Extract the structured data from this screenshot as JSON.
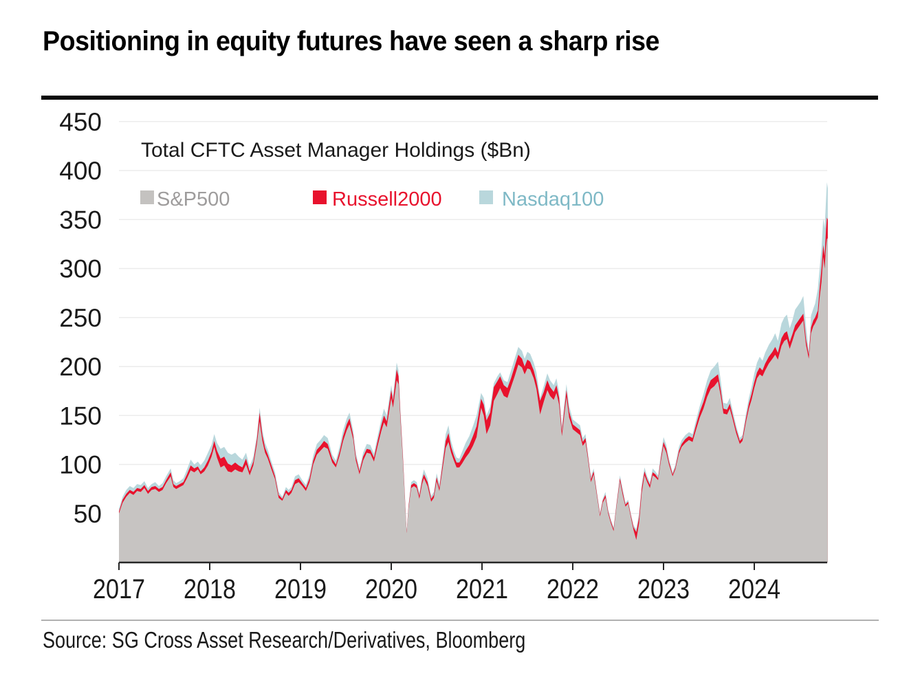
{
  "title": "Positioning in equity futures have seen a sharp rise",
  "source": "Source: SG Cross Asset Research/Derivatives, Bloomberg",
  "legend": {
    "heading": "Total CFTC Asset Manager Holdings ($Bn)",
    "items": [
      {
        "label": "S&P500",
        "swatch": "#c4c2c0",
        "text_color": "#9e9c9c",
        "x_swatch": 204,
        "x_label": 228
      },
      {
        "label": "Russell2000",
        "swatch": "#e8122d",
        "text_color": "#e8122d",
        "x_swatch": 455,
        "x_label": 483
      },
      {
        "label": "Nasdaq100",
        "swatch": "#b9d7dc",
        "text_color": "#7fb9c6",
        "x_swatch": 697,
        "x_label": 730
      }
    ]
  },
  "colors": {
    "sp500_fill": "#c7c4c2",
    "russell_fill": "#e8122d",
    "nasdaq_fill": "#b9d7dc",
    "grid": "#ececec",
    "axis": "#262626",
    "tick_label": "#1a1a1a"
  },
  "chart_data": {
    "type": "area",
    "stacked": true,
    "title": "Total CFTC Asset Manager Holdings ($Bn)",
    "series_names": [
      "S&P500",
      "Russell2000",
      "Nasdaq100"
    ],
    "units": "$Bn",
    "xlim": [
      2017.0,
      2024.81
    ],
    "ylim": [
      0,
      450
    ],
    "y_ticks": [
      50,
      100,
      150,
      200,
      250,
      300,
      350,
      400,
      450
    ],
    "x_ticks": [
      "2017",
      "2018",
      "2019",
      "2020",
      "2021",
      "2022",
      "2023",
      "2024"
    ],
    "grid": true,
    "legend_position": "top-left",
    "columns": [
      "year_fraction",
      "sp500",
      "russell2000_increment",
      "nasdaq100_increment"
    ],
    "note": "stacked area; russell and nasdaq values are increments above sp500",
    "points": [
      [
        2017.0,
        50,
        2,
        3
      ],
      [
        2017.04,
        61,
        3,
        3
      ],
      [
        2017.08,
        67,
        3,
        4
      ],
      [
        2017.12,
        71,
        3,
        4
      ],
      [
        2017.16,
        69,
        3,
        4
      ],
      [
        2017.2,
        73,
        3,
        4
      ],
      [
        2017.24,
        72,
        3,
        4
      ],
      [
        2017.28,
        76,
        3,
        4
      ],
      [
        2017.32,
        70,
        3,
        3
      ],
      [
        2017.36,
        74,
        3,
        3
      ],
      [
        2017.4,
        75,
        3,
        4
      ],
      [
        2017.44,
        72,
        3,
        3
      ],
      [
        2017.48,
        74,
        3,
        4
      ],
      [
        2017.52,
        81,
        3,
        4
      ],
      [
        2017.57,
        88,
        4,
        4
      ],
      [
        2017.6,
        77,
        3,
        4
      ],
      [
        2017.63,
        75,
        3,
        3
      ],
      [
        2017.67,
        77,
        3,
        3
      ],
      [
        2017.71,
        79,
        3,
        4
      ],
      [
        2017.75,
        86,
        4,
        5
      ],
      [
        2017.79,
        94,
        5,
        6
      ],
      [
        2017.83,
        92,
        4,
        4
      ],
      [
        2017.87,
        95,
        3,
        5
      ],
      [
        2017.9,
        90,
        3,
        6
      ],
      [
        2017.94,
        93,
        4,
        7
      ],
      [
        2017.98,
        99,
        5,
        8
      ],
      [
        2018.02,
        108,
        5,
        7
      ],
      [
        2018.05,
        118,
        6,
        7
      ],
      [
        2018.08,
        107,
        7,
        8
      ],
      [
        2018.12,
        97,
        9,
        10
      ],
      [
        2018.16,
        99,
        9,
        10
      ],
      [
        2018.2,
        93,
        8,
        11
      ],
      [
        2018.24,
        92,
        7,
        11
      ],
      [
        2018.28,
        95,
        7,
        10
      ],
      [
        2018.32,
        93,
        6,
        9
      ],
      [
        2018.36,
        92,
        5,
        8
      ],
      [
        2018.4,
        100,
        6,
        6
      ],
      [
        2018.44,
        89,
        4,
        5
      ],
      [
        2018.48,
        99,
        4,
        5
      ],
      [
        2018.52,
        121,
        5,
        4
      ],
      [
        2018.55,
        144,
        9,
        5
      ],
      [
        2018.58,
        124,
        6,
        5
      ],
      [
        2018.61,
        112,
        5,
        5
      ],
      [
        2018.64,
        106,
        4,
        5
      ],
      [
        2018.68,
        95,
        4,
        4
      ],
      [
        2018.72,
        85,
        3,
        4
      ],
      [
        2018.76,
        66,
        3,
        3
      ],
      [
        2018.8,
        63,
        2,
        2
      ],
      [
        2018.84,
        71,
        3,
        3
      ],
      [
        2018.87,
        68,
        3,
        3
      ],
      [
        2018.9,
        71,
        3,
        3
      ],
      [
        2018.94,
        80,
        4,
        4
      ],
      [
        2018.98,
        82,
        4,
        4
      ],
      [
        2019.02,
        78,
        3,
        3
      ],
      [
        2019.06,
        73,
        3,
        3
      ],
      [
        2019.1,
        82,
        4,
        4
      ],
      [
        2019.14,
        100,
        4,
        5
      ],
      [
        2019.18,
        110,
        5,
        6
      ],
      [
        2019.22,
        114,
        5,
        6
      ],
      [
        2019.26,
        118,
        6,
        6
      ],
      [
        2019.3,
        116,
        5,
        6
      ],
      [
        2019.35,
        102,
        4,
        4
      ],
      [
        2019.39,
        97,
        3,
        4
      ],
      [
        2019.43,
        109,
        4,
        5
      ],
      [
        2019.47,
        124,
        5,
        6
      ],
      [
        2019.51,
        135,
        6,
        6
      ],
      [
        2019.54,
        141,
        6,
        6
      ],
      [
        2019.58,
        126,
        4,
        5
      ],
      [
        2019.61,
        104,
        4,
        4
      ],
      [
        2019.65,
        90,
        3,
        3
      ],
      [
        2019.69,
        104,
        4,
        4
      ],
      [
        2019.73,
        112,
        4,
        5
      ],
      [
        2019.77,
        111,
        4,
        5
      ],
      [
        2019.81,
        103,
        4,
        4
      ],
      [
        2019.85,
        119,
        5,
        5
      ],
      [
        2019.89,
        134,
        6,
        6
      ],
      [
        2019.92,
        143,
        7,
        7
      ],
      [
        2019.95,
        138,
        6,
        6
      ],
      [
        2020.0,
        168,
        8,
        5
      ],
      [
        2020.02,
        158,
        7,
        5
      ],
      [
        2020.06,
        186,
        11,
        7
      ],
      [
        2020.08,
        182,
        8,
        6
      ],
      [
        2020.1,
        148,
        5,
        5
      ],
      [
        2020.13,
        101,
        4,
        4
      ],
      [
        2020.17,
        30,
        1,
        1
      ],
      [
        2020.19,
        55,
        2,
        2
      ],
      [
        2020.22,
        76,
        3,
        3
      ],
      [
        2020.25,
        78,
        3,
        3
      ],
      [
        2020.28,
        76,
        3,
        3
      ],
      [
        2020.31,
        65,
        3,
        3
      ],
      [
        2020.34,
        80,
        4,
        4
      ],
      [
        2020.36,
        86,
        4,
        5
      ],
      [
        2020.4,
        78,
        4,
        4
      ],
      [
        2020.44,
        62,
        3,
        3
      ],
      [
        2020.47,
        66,
        3,
        3
      ],
      [
        2020.5,
        83,
        4,
        4
      ],
      [
        2020.53,
        73,
        3,
        4
      ],
      [
        2020.57,
        98,
        5,
        5
      ],
      [
        2020.6,
        117,
        7,
        7
      ],
      [
        2020.63,
        123,
        9,
        8
      ],
      [
        2020.66,
        112,
        6,
        6
      ],
      [
        2020.69,
        104,
        5,
        5
      ],
      [
        2020.72,
        97,
        5,
        5
      ],
      [
        2020.75,
        97,
        5,
        4
      ],
      [
        2020.78,
        101,
        6,
        6
      ],
      [
        2020.82,
        107,
        7,
        8
      ],
      [
        2020.86,
        112,
        8,
        9
      ],
      [
        2020.9,
        119,
        10,
        10
      ],
      [
        2020.94,
        128,
        11,
        11
      ],
      [
        2020.96,
        140,
        10,
        9
      ],
      [
        2020.99,
        158,
        9,
        6
      ],
      [
        2021.02,
        150,
        11,
        7
      ],
      [
        2021.05,
        131,
        14,
        5
      ],
      [
        2021.09,
        140,
        13,
        6
      ],
      [
        2021.13,
        165,
        14,
        4
      ],
      [
        2021.17,
        172,
        13,
        5
      ],
      [
        2021.2,
        178,
        12,
        4
      ],
      [
        2021.24,
        170,
        11,
        5
      ],
      [
        2021.28,
        168,
        10,
        6
      ],
      [
        2021.32,
        179,
        9,
        8
      ],
      [
        2021.36,
        190,
        10,
        8
      ],
      [
        2021.4,
        202,
        10,
        8
      ],
      [
        2021.44,
        199,
        9,
        8
      ],
      [
        2021.47,
        192,
        8,
        8
      ],
      [
        2021.5,
        198,
        9,
        8
      ],
      [
        2021.53,
        197,
        8,
        8
      ],
      [
        2021.57,
        188,
        8,
        8
      ],
      [
        2021.6,
        177,
        8,
        9
      ],
      [
        2021.64,
        151,
        14,
        3
      ],
      [
        2021.68,
        164,
        10,
        6
      ],
      [
        2021.72,
        176,
        10,
        7
      ],
      [
        2021.75,
        170,
        9,
        7
      ],
      [
        2021.79,
        166,
        8,
        7
      ],
      [
        2021.82,
        173,
        8,
        7
      ],
      [
        2021.85,
        161,
        7,
        6
      ],
      [
        2021.88,
        129,
        5,
        5
      ],
      [
        2021.91,
        153,
        6,
        6
      ],
      [
        2021.93,
        169,
        7,
        6
      ],
      [
        2021.96,
        148,
        6,
        6
      ],
      [
        2022.0,
        136,
        5,
        5
      ],
      [
        2022.04,
        133,
        5,
        5
      ],
      [
        2022.08,
        130,
        5,
        5
      ],
      [
        2022.11,
        119,
        4,
        4
      ],
      [
        2022.14,
        123,
        4,
        4
      ],
      [
        2022.17,
        104,
        3,
        3
      ],
      [
        2022.2,
        82,
        3,
        3
      ],
      [
        2022.23,
        90,
        3,
        3
      ],
      [
        2022.27,
        66,
        2,
        2
      ],
      [
        2022.3,
        47,
        2,
        2
      ],
      [
        2022.33,
        61,
        2,
        2
      ],
      [
        2022.36,
        66,
        3,
        3
      ],
      [
        2022.39,
        50,
        2,
        2
      ],
      [
        2022.42,
        40,
        2,
        2
      ],
      [
        2022.45,
        32,
        2,
        2
      ],
      [
        2022.48,
        56,
        2,
        2
      ],
      [
        2022.52,
        83,
        3,
        3
      ],
      [
        2022.55,
        69,
        3,
        3
      ],
      [
        2022.58,
        57,
        2,
        2
      ],
      [
        2022.61,
        60,
        2,
        2
      ],
      [
        2022.64,
        46,
        2,
        2
      ],
      [
        2022.67,
        33,
        3,
        2
      ],
      [
        2022.7,
        23,
        8,
        3
      ],
      [
        2022.73,
        40,
        6,
        4
      ],
      [
        2022.76,
        71,
        5,
        4
      ],
      [
        2022.79,
        89,
        4,
        4
      ],
      [
        2022.82,
        82,
        3,
        3
      ],
      [
        2022.85,
        76,
        3,
        3
      ],
      [
        2022.88,
        89,
        3,
        4
      ],
      [
        2022.91,
        87,
        3,
        3
      ],
      [
        2022.94,
        84,
        2,
        3
      ],
      [
        2022.97,
        103,
        3,
        4
      ],
      [
        2023.0,
        119,
        4,
        5
      ],
      [
        2023.03,
        112,
        4,
        4
      ],
      [
        2023.06,
        100,
        3,
        3
      ],
      [
        2023.1,
        88,
        2,
        2
      ],
      [
        2023.13,
        95,
        2,
        3
      ],
      [
        2023.17,
        111,
        3,
        4
      ],
      [
        2023.2,
        118,
        3,
        4
      ],
      [
        2023.24,
        122,
        4,
        4
      ],
      [
        2023.28,
        125,
        4,
        4
      ],
      [
        2023.32,
        123,
        4,
        4
      ],
      [
        2023.36,
        136,
        5,
        5
      ],
      [
        2023.4,
        148,
        6,
        6
      ],
      [
        2023.44,
        157,
        7,
        8
      ],
      [
        2023.48,
        169,
        8,
        9
      ],
      [
        2023.52,
        177,
        9,
        10
      ],
      [
        2023.56,
        180,
        9,
        11
      ],
      [
        2023.6,
        185,
        7,
        13
      ],
      [
        2023.63,
        170,
        6,
        10
      ],
      [
        2023.66,
        152,
        5,
        6
      ],
      [
        2023.7,
        151,
        5,
        6
      ],
      [
        2023.73,
        157,
        5,
        6
      ],
      [
        2023.76,
        147,
        4,
        5
      ],
      [
        2023.8,
        132,
        4,
        4
      ],
      [
        2023.84,
        121,
        3,
        3
      ],
      [
        2023.87,
        124,
        3,
        3
      ],
      [
        2023.91,
        144,
        4,
        5
      ],
      [
        2023.94,
        157,
        5,
        6
      ],
      [
        2023.97,
        166,
        6,
        7
      ],
      [
        2024.0,
        178,
        6,
        9
      ],
      [
        2024.03,
        188,
        6,
        10
      ],
      [
        2024.06,
        192,
        7,
        11
      ],
      [
        2024.09,
        190,
        6,
        10
      ],
      [
        2024.12,
        196,
        7,
        11
      ],
      [
        2024.16,
        203,
        7,
        12
      ],
      [
        2024.2,
        208,
        7,
        13
      ],
      [
        2024.23,
        212,
        8,
        14
      ],
      [
        2024.26,
        207,
        7,
        12
      ],
      [
        2024.3,
        221,
        8,
        15
      ],
      [
        2024.33,
        226,
        8,
        16
      ],
      [
        2024.36,
        228,
        8,
        17
      ],
      [
        2024.39,
        218,
        7,
        14
      ],
      [
        2024.42,
        226,
        7,
        14
      ],
      [
        2024.45,
        235,
        7,
        16
      ],
      [
        2024.48,
        239,
        7,
        16
      ],
      [
        2024.51,
        243,
        7,
        16
      ],
      [
        2024.54,
        247,
        7,
        18
      ],
      [
        2024.57,
        222,
        6,
        13
      ],
      [
        2024.6,
        208,
        4,
        4
      ],
      [
        2024.625,
        234,
        6,
        12
      ],
      [
        2024.65,
        241,
        6,
        12
      ],
      [
        2024.67,
        244,
        6,
        14
      ],
      [
        2024.7,
        250,
        7,
        22
      ],
      [
        2024.72,
        270,
        10,
        20
      ],
      [
        2024.74,
        286,
        14,
        20
      ],
      [
        2024.76,
        312,
        12,
        27
      ],
      [
        2024.775,
        300,
        13,
        28
      ],
      [
        2024.79,
        322,
        18,
        30
      ],
      [
        2024.8,
        330,
        22,
        36
      ],
      [
        2024.81,
        331,
        19,
        32
      ]
    ]
  }
}
